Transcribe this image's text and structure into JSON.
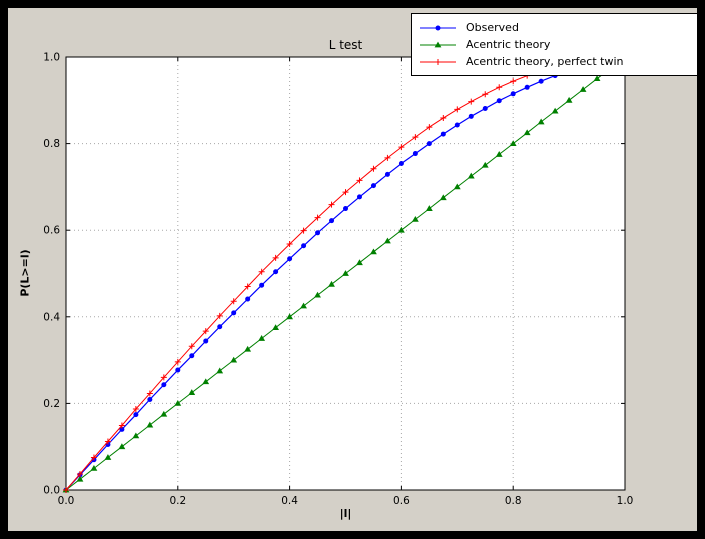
{
  "window": {
    "background": "#000000",
    "figure_face": "#d4d0c8",
    "axes_face": "#ffffff",
    "grid_color": "#a8a8a8",
    "axis_color": "#000000"
  },
  "chart_data": {
    "type": "line",
    "title": "L test",
    "xlabel": "|l|",
    "ylabel": "P(L>=l)",
    "xlim": [
      0,
      1
    ],
    "ylim": [
      0,
      1
    ],
    "xticks": [
      0,
      0.2,
      0.4,
      0.6,
      0.8,
      1
    ],
    "yticks": [
      0,
      0.2,
      0.4,
      0.6,
      0.8,
      1
    ],
    "xtick_labels": [
      "0.0",
      "0.2",
      "0.4",
      "0.6",
      "0.8",
      "1.0"
    ],
    "ytick_labels": [
      "0.0",
      "0.2",
      "0.4",
      "0.6",
      "0.8",
      "1.0"
    ],
    "grid": true,
    "legend_position": "upper right",
    "series": [
      {
        "name": "Observed",
        "color": "#0000ff",
        "marker": "circle",
        "x": [
          0,
          0.025,
          0.05,
          0.075,
          0.1,
          0.125,
          0.15,
          0.175,
          0.2,
          0.225,
          0.25,
          0.275,
          0.3,
          0.325,
          0.35,
          0.375,
          0.4,
          0.425,
          0.45,
          0.475,
          0.5,
          0.525,
          0.55,
          0.575,
          0.6,
          0.625,
          0.65,
          0.675,
          0.7,
          0.725,
          0.75,
          0.775,
          0.8,
          0.825,
          0.85,
          0.875
        ],
        "y": [
          0,
          0.035,
          0.07,
          0.105,
          0.14,
          0.174,
          0.209,
          0.243,
          0.277,
          0.31,
          0.344,
          0.377,
          0.409,
          0.441,
          0.473,
          0.504,
          0.534,
          0.564,
          0.594,
          0.622,
          0.65,
          0.677,
          0.703,
          0.729,
          0.754,
          0.777,
          0.8,
          0.822,
          0.843,
          0.863,
          0.881,
          0.899,
          0.915,
          0.93,
          0.944,
          0.957
        ]
      },
      {
        "name": "Acentric theory",
        "color": "#008000",
        "marker": "triangle",
        "x": [
          0,
          0.025,
          0.05,
          0.075,
          0.1,
          0.125,
          0.15,
          0.175,
          0.2,
          0.225,
          0.25,
          0.275,
          0.3,
          0.325,
          0.35,
          0.375,
          0.4,
          0.425,
          0.45,
          0.475,
          0.5,
          0.525,
          0.55,
          0.575,
          0.6,
          0.625,
          0.65,
          0.675,
          0.7,
          0.725,
          0.75,
          0.775,
          0.8,
          0.825,
          0.85,
          0.875,
          0.9,
          0.925,
          0.95,
          0.975
        ],
        "y": [
          0,
          0.025,
          0.05,
          0.075,
          0.1,
          0.125,
          0.15,
          0.175,
          0.2,
          0.225,
          0.25,
          0.275,
          0.3,
          0.325,
          0.35,
          0.375,
          0.4,
          0.425,
          0.45,
          0.475,
          0.5,
          0.525,
          0.55,
          0.575,
          0.6,
          0.625,
          0.65,
          0.675,
          0.7,
          0.725,
          0.75,
          0.775,
          0.8,
          0.825,
          0.85,
          0.875,
          0.9,
          0.925,
          0.95,
          0.975
        ]
      },
      {
        "name": "Acentric theory, perfect twin",
        "color": "#ff0000",
        "marker": "plus",
        "x": [
          0,
          0.025,
          0.05,
          0.075,
          0.1,
          0.125,
          0.15,
          0.175,
          0.2,
          0.225,
          0.25,
          0.275,
          0.3,
          0.325,
          0.35,
          0.375,
          0.4,
          0.425,
          0.45,
          0.475,
          0.5,
          0.525,
          0.55,
          0.575,
          0.6,
          0.625,
          0.65,
          0.675,
          0.7,
          0.725,
          0.75,
          0.775,
          0.8,
          0.825,
          0.85
        ],
        "y": [
          0,
          0.037,
          0.075,
          0.112,
          0.149,
          0.187,
          0.223,
          0.26,
          0.296,
          0.332,
          0.367,
          0.402,
          0.436,
          0.47,
          0.504,
          0.536,
          0.568,
          0.599,
          0.629,
          0.659,
          0.688,
          0.715,
          0.742,
          0.767,
          0.792,
          0.815,
          0.838,
          0.859,
          0.879,
          0.897,
          0.914,
          0.93,
          0.944,
          0.957,
          0.968
        ]
      }
    ]
  }
}
